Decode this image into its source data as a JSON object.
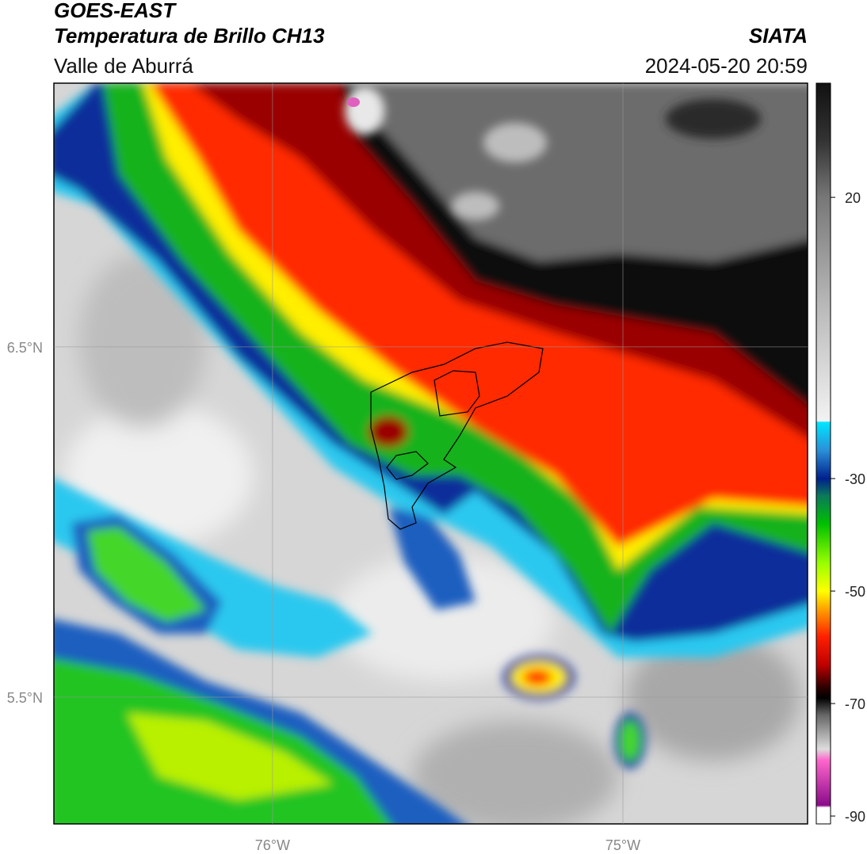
{
  "header": {
    "title": "GOES-EAST",
    "subtitle": "Temperatura de Brillo CH13",
    "region": "Valle de Aburrá",
    "source": "SIATA",
    "datetime": "2024-05-20 20:59"
  },
  "map": {
    "xlim": [
      -76.624,
      -74.473
    ],
    "ylim": [
      5.138,
      7.253
    ],
    "xticks": [
      {
        "value": -76,
        "label": "76°W"
      },
      {
        "value": -75,
        "label": "75°W"
      }
    ],
    "yticks": [
      {
        "value": 6.5,
        "label": "6.5°N"
      },
      {
        "value": 5.5,
        "label": "5.5°N"
      }
    ],
    "grid": true
  },
  "colorbar": {
    "lim": [
      -91.4,
      40.3
    ],
    "ticks": [
      20,
      -30,
      -50,
      -70,
      -90
    ]
  }
}
